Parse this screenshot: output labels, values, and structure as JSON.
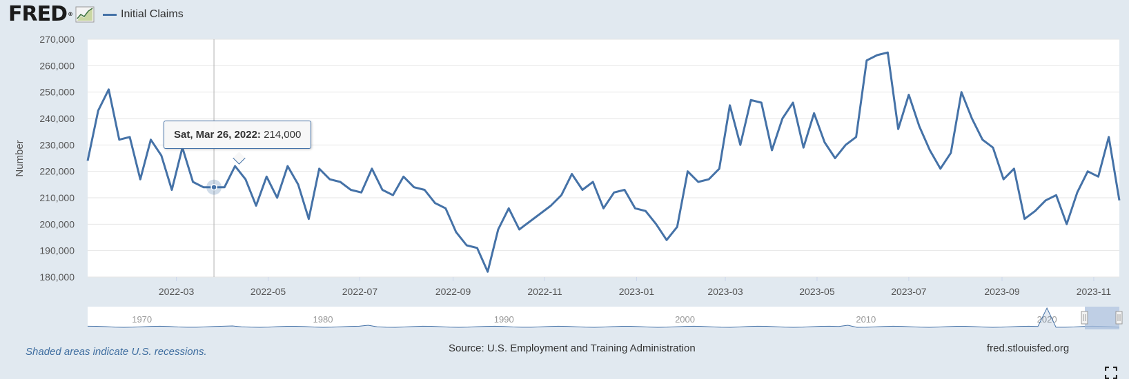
{
  "header": {
    "logo_text": "FRED",
    "logo_mark": "®",
    "logo_icon": "line-graph-icon",
    "legend_label": "Initial Claims",
    "legend_color": "#4572a7"
  },
  "tooltip": {
    "date": "Sat, Mar 26, 2022:",
    "value": "214,000"
  },
  "footer": {
    "recession_note": "Shaded areas indicate U.S. recessions.",
    "source": "Source: U.S. Employment and Training Administration",
    "url": "fred.stlouisfed.org",
    "fullscreen_icon": "fullscreen-icon"
  },
  "chart_data": {
    "type": "line",
    "title": "",
    "xlabel": "",
    "ylabel": "Number",
    "ylim": [
      180000,
      270000
    ],
    "y_ticks": [
      "180,000",
      "190,000",
      "200,000",
      "210,000",
      "220,000",
      "230,000",
      "240,000",
      "250,000",
      "260,000",
      "270,000"
    ],
    "x_ticks": [
      "2022-03",
      "2022-05",
      "2022-07",
      "2022-09",
      "2022-11",
      "2023-01",
      "2023-03",
      "2023-05",
      "2023-07",
      "2023-09",
      "2023-11"
    ],
    "grid": true,
    "line_color": "#4572a7",
    "highlight_date": "2022-03-26",
    "series": [
      {
        "name": "Initial Claims",
        "x": [
          "2022-01-01",
          "2022-01-08",
          "2022-01-15",
          "2022-01-22",
          "2022-01-29",
          "2022-02-05",
          "2022-02-12",
          "2022-02-19",
          "2022-02-26",
          "2022-03-05",
          "2022-03-12",
          "2022-03-19",
          "2022-03-26",
          "2022-04-02",
          "2022-04-09",
          "2022-04-16",
          "2022-04-23",
          "2022-04-30",
          "2022-05-07",
          "2022-05-14",
          "2022-05-21",
          "2022-05-28",
          "2022-06-04",
          "2022-06-11",
          "2022-06-18",
          "2022-06-25",
          "2022-07-02",
          "2022-07-09",
          "2022-07-16",
          "2022-07-23",
          "2022-07-30",
          "2022-08-06",
          "2022-08-13",
          "2022-08-20",
          "2022-08-27",
          "2022-09-03",
          "2022-09-10",
          "2022-09-17",
          "2022-09-24",
          "2022-10-01",
          "2022-10-08",
          "2022-10-15",
          "2022-10-22",
          "2022-10-29",
          "2022-11-05",
          "2022-11-12",
          "2022-11-19",
          "2022-11-26",
          "2022-12-03",
          "2022-12-10",
          "2022-12-17",
          "2022-12-24",
          "2022-12-31",
          "2023-01-07",
          "2023-01-14",
          "2023-01-21",
          "2023-01-28",
          "2023-02-04",
          "2023-02-11",
          "2023-02-18",
          "2023-02-25",
          "2023-03-04",
          "2023-03-11",
          "2023-03-18",
          "2023-03-25",
          "2023-04-01",
          "2023-04-08",
          "2023-04-15",
          "2023-04-22",
          "2023-04-29",
          "2023-05-06",
          "2023-05-13",
          "2023-05-20",
          "2023-05-27",
          "2023-06-03",
          "2023-06-10",
          "2023-06-17",
          "2023-06-24",
          "2023-07-01",
          "2023-07-08",
          "2023-07-15",
          "2023-07-22",
          "2023-07-29",
          "2023-08-05",
          "2023-08-12",
          "2023-08-19",
          "2023-08-26",
          "2023-09-02",
          "2023-09-09",
          "2023-09-16",
          "2023-09-23",
          "2023-09-30",
          "2023-10-07",
          "2023-10-14",
          "2023-10-21",
          "2023-10-28",
          "2023-11-04",
          "2023-11-11",
          "2023-11-18"
        ],
        "values": [
          224000,
          243000,
          251000,
          232000,
          233000,
          217000,
          232000,
          226000,
          213000,
          229000,
          216000,
          214000,
          214000,
          214000,
          222000,
          217000,
          207000,
          218000,
          210000,
          222000,
          215000,
          202000,
          221000,
          217000,
          216000,
          213000,
          212000,
          221000,
          213000,
          211000,
          218000,
          214000,
          213000,
          208000,
          206000,
          197000,
          192000,
          191000,
          182000,
          198000,
          206000,
          198000,
          201000,
          204000,
          207000,
          211000,
          219000,
          213000,
          216000,
          206000,
          212000,
          213000,
          206000,
          205000,
          200000,
          194000,
          199000,
          220000,
          216000,
          217000,
          221000,
          245000,
          230000,
          247000,
          246000,
          228000,
          240000,
          246000,
          229000,
          242000,
          231000,
          225000,
          230000,
          233000,
          262000,
          264000,
          265000,
          236000,
          249000,
          237000,
          228000,
          221000,
          227000,
          250000,
          240000,
          232000,
          229000,
          217000,
          221000,
          202000,
          205000,
          209000,
          211000,
          200000,
          212000,
          220000,
          218000,
          233000,
          209000
        ]
      }
    ],
    "navigator": {
      "x_ticks": [
        "1970",
        "1980",
        "1990",
        "2000",
        "2010",
        "2020"
      ],
      "x_range": [
        1967,
        2024
      ]
    }
  }
}
